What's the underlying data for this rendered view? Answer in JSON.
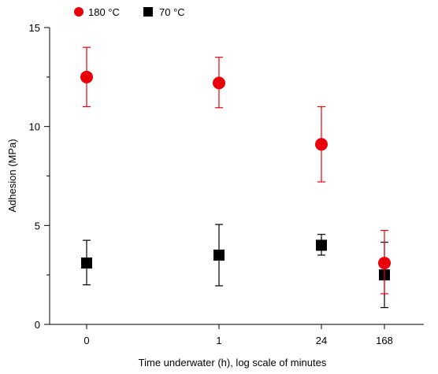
{
  "chart_data": {
    "type": "scatter",
    "xlabel": "Time underwater (h), log scale of minutes",
    "ylabel": "Adhesion (MPa)",
    "categories": [
      "0",
      "1",
      "24",
      "168"
    ],
    "ylim": [
      0,
      15
    ],
    "yticks": [
      "0",
      "5",
      "10",
      "15"
    ],
    "grid": false,
    "legend_position": "top-left",
    "series": [
      {
        "name": "180 °C",
        "color": "#e8000b",
        "marker": "circle",
        "values": [
          12.5,
          12.2,
          9.1,
          3.1
        ],
        "err_low": [
          11.0,
          10.95,
          7.2,
          1.55
        ],
        "err_high": [
          14.0,
          13.5,
          11.0,
          4.75
        ]
      },
      {
        "name": "70 °C",
        "color": "#000000",
        "marker": "square",
        "values": [
          3.1,
          3.5,
          4.0,
          2.5
        ],
        "err_low": [
          2.0,
          1.95,
          3.5,
          0.85
        ],
        "err_high": [
          4.25,
          5.05,
          4.55,
          4.15
        ]
      }
    ]
  }
}
